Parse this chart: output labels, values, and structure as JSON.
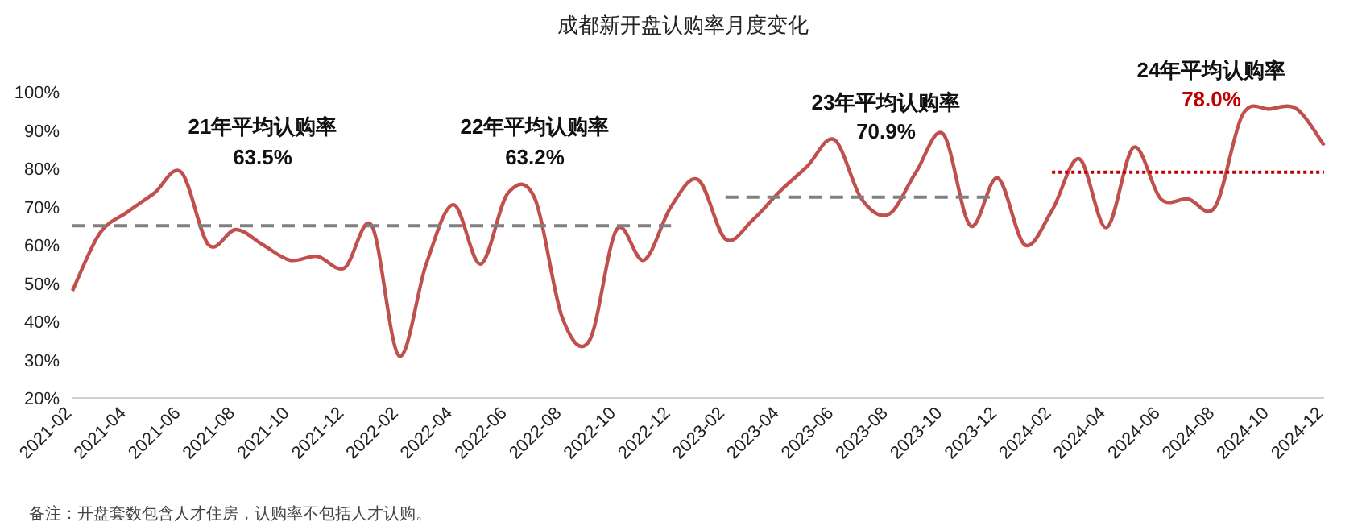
{
  "chart_data": {
    "type": "line",
    "title": "成都新开盘认购率月度变化",
    "x": [
      "2021-02",
      "2021-03",
      "2021-04",
      "2021-05",
      "2021-06",
      "2021-07",
      "2021-08",
      "2021-09",
      "2021-10",
      "2021-11",
      "2021-12",
      "2022-01",
      "2022-02",
      "2022-03",
      "2022-04",
      "2022-05",
      "2022-06",
      "2022-07",
      "2022-08",
      "2022-09",
      "2022-10",
      "2022-11",
      "2022-12",
      "2023-01",
      "2023-02",
      "2023-03",
      "2023-04",
      "2023-05",
      "2023-06",
      "2023-07",
      "2023-08",
      "2023-09",
      "2023-10",
      "2023-11",
      "2023-12",
      "2024-01",
      "2024-02",
      "2024-03",
      "2024-04",
      "2024-05",
      "2024-06",
      "2024-07",
      "2024-08",
      "2024-09",
      "2024-10",
      "2024-11",
      "2024-12"
    ],
    "series": [
      {
        "color": "#c0504d",
        "values": [
          48,
          63,
          68.5,
          73.5,
          79,
          60,
          64,
          60,
          56,
          57,
          54,
          65,
          31,
          55,
          70.5,
          55,
          73.5,
          72,
          41,
          35,
          64,
          56,
          70,
          77,
          61.5,
          66.5,
          74,
          80.5,
          87.5,
          72,
          68,
          79,
          89,
          65,
          77.5,
          60,
          69,
          82.5,
          64.5,
          85.5,
          72,
          72,
          70,
          94,
          95.5,
          95.5,
          86
        ]
      },
      {
        "type": "line",
        "x": [
          "2021-02",
          "2022-12"
        ],
        "values": [
          65,
          65
        ],
        "color": "#808080",
        "line_style": "dashed"
      },
      {
        "type": "line",
        "x": [
          "2023-02",
          "2023-12"
        ],
        "values": [
          72.5,
          72.5
        ],
        "color": "#808080",
        "line_style": "dashed"
      },
      {
        "type": "line",
        "x": [
          "2024-02",
          "2024-12"
        ],
        "values": [
          79,
          79
        ],
        "color": "#c00000",
        "line_style": "dotted"
      }
    ],
    "xlim": [
      "2021-02",
      "2024-12"
    ],
    "xticks": [
      "2021-02",
      "2021-04",
      "2021-06",
      "2021-08",
      "2021-10",
      "2021-12",
      "2022-02",
      "2022-04",
      "2022-06",
      "2022-08",
      "2022-10",
      "2022-12",
      "2023-02",
      "2023-04",
      "2023-06",
      "2023-08",
      "2023-10",
      "2023-12",
      "2024-02",
      "2024-04",
      "2024-06",
      "2024-08",
      "2024-10",
      "2024-12"
    ],
    "ylim": [
      20,
      100
    ],
    "yticks": [
      {
        "value": 20,
        "label": "20%"
      },
      {
        "value": 30,
        "label": "30%"
      },
      {
        "value": 40,
        "label": "40%"
      },
      {
        "value": 50,
        "label": "50%"
      },
      {
        "value": 60,
        "label": "60%"
      },
      {
        "value": 70,
        "label": "70%"
      },
      {
        "value": 80,
        "label": "80%"
      },
      {
        "value": 90,
        "label": "90%"
      },
      {
        "value": 100,
        "label": "100%"
      }
    ],
    "grid": false,
    "annotations": [
      "21年平均认购率",
      "63.5%",
      "22年平均认购率",
      "63.2%",
      "23年平均认购率",
      "70.9%",
      "24年平均认购率",
      "78.0%",
      "备注：开盘套数包含人才住房，认购率不包括人才认购。"
    ]
  }
}
